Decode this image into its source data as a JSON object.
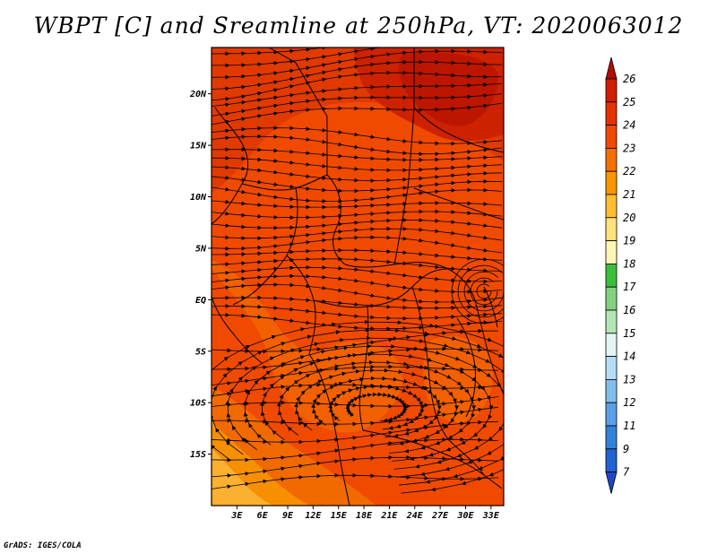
{
  "title": "WBPT [C] and Sreamline at 250hPa, VT: 2020063012",
  "credit": "GrADS: IGES/COLA",
  "colors": {
    "fill_background": "#f04a00",
    "fill_dark": "#d42400",
    "fill_darker": "#c01800",
    "fill_light": "#f57000",
    "fill_lighter": "#ffa020"
  },
  "chart_data": {
    "type": "heatmap",
    "variable": "WBPT [C]",
    "level": "250hPa",
    "valid_time": "2020063012",
    "lon_range": [
      0,
      34.5
    ],
    "lat_range": [
      -20,
      24.5
    ],
    "yticks": [
      {
        "label": "20N",
        "lat": 20
      },
      {
        "label": "15N",
        "lat": 15
      },
      {
        "label": "10N",
        "lat": 10
      },
      {
        "label": "5N",
        "lat": 5
      },
      {
        "label": "EQ",
        "lat": 0
      },
      {
        "label": "5S",
        "lat": -5
      },
      {
        "label": "10S",
        "lat": -10
      },
      {
        "label": "15S",
        "lat": -15
      }
    ],
    "xticks": [
      {
        "label": "3E",
        "lon": 3
      },
      {
        "label": "6E",
        "lon": 6
      },
      {
        "label": "9E",
        "lon": 9
      },
      {
        "label": "12E",
        "lon": 12
      },
      {
        "label": "15E",
        "lon": 15
      },
      {
        "label": "18E",
        "lon": 18
      },
      {
        "label": "21E",
        "lon": 21
      },
      {
        "label": "24E",
        "lon": 24
      },
      {
        "label": "27E",
        "lon": 27
      },
      {
        "label": "30E",
        "lon": 30
      },
      {
        "label": "33E",
        "lon": 33
      }
    ],
    "colorbar": {
      "levels": [
        "26",
        "25",
        "24",
        "23",
        "22",
        "21",
        "20",
        "19",
        "18",
        "17",
        "16",
        "15",
        "14",
        "13",
        "12",
        "11",
        "9",
        "7"
      ],
      "colors": [
        "#b40a00",
        "#d21e00",
        "#e63200",
        "#f04a00",
        "#f57000",
        "#fa9600",
        "#ffbe32",
        "#ffe17d",
        "#fff5b4",
        "#3cbe3c",
        "#82d282",
        "#b4e6b4",
        "#e1f5f5",
        "#b4dcf5",
        "#82beeb",
        "#5aa0e6",
        "#3282d7",
        "#1e64d2",
        "#1e46c8"
      ]
    }
  }
}
